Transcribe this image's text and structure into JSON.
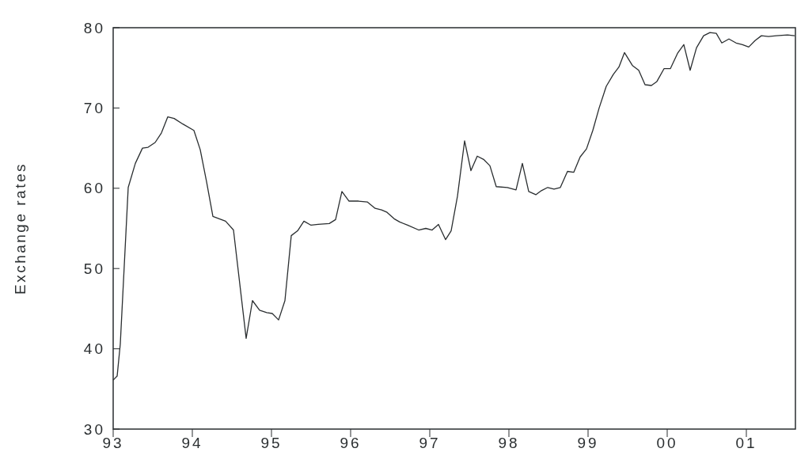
{
  "chart_data": {
    "type": "line",
    "ylabel": "Exchange rates",
    "x": [
      1993.0,
      1993.05,
      1993.09,
      1993.19,
      1993.28,
      1993.37,
      1993.44,
      1993.53,
      1993.61,
      1993.69,
      1993.77,
      1993.88,
      1994.02,
      1994.1,
      1994.18,
      1994.26,
      1994.42,
      1994.52,
      1994.68,
      1994.76,
      1994.85,
      1994.94,
      1995.01,
      1995.09,
      1995.17,
      1995.25,
      1995.33,
      1995.41,
      1995.5,
      1995.59,
      1995.73,
      1995.81,
      1995.89,
      1995.98,
      1996.1,
      1996.21,
      1996.31,
      1996.39,
      1996.46,
      1996.55,
      1996.62,
      1996.72,
      1996.86,
      1996.95,
      1997.03,
      1997.11,
      1997.2,
      1997.27,
      1997.35,
      1997.44,
      1997.52,
      1997.6,
      1997.68,
      1997.76,
      1997.84,
      1997.98,
      1998.09,
      1998.17,
      1998.25,
      1998.34,
      1998.41,
      1998.49,
      1998.57,
      1998.65,
      1998.74,
      1998.82,
      1998.9,
      1998.98,
      1999.06,
      1999.14,
      1999.23,
      1999.32,
      1999.39,
      1999.46,
      1999.56,
      1999.64,
      1999.72,
      1999.8,
      1999.87,
      1999.96,
      2000.04,
      2000.13,
      2000.21,
      2000.29,
      2000.37,
      2000.46,
      2000.54,
      2000.62,
      2000.69,
      2000.78,
      2000.87,
      2000.95,
      2001.03,
      2001.11,
      2001.19,
      2001.28,
      2001.38,
      2001.52,
      2001.61
    ],
    "series": [
      {
        "color": "#2a2e30",
        "values": [
          36.1,
          36.6,
          40.6,
          60.1,
          63.1,
          65.0,
          65.1,
          65.7,
          66.9,
          68.9,
          68.7,
          68.0,
          67.2,
          64.8,
          60.8,
          56.5,
          55.9,
          54.8,
          41.3,
          46.0,
          44.8,
          44.5,
          44.4,
          43.6,
          46.0,
          54.1,
          54.7,
          55.9,
          55.4,
          55.5,
          55.6,
          56.1,
          59.6,
          58.4,
          58.4,
          58.3,
          57.5,
          57.3,
          57.0,
          56.2,
          55.8,
          55.4,
          54.8,
          55.0,
          54.8,
          55.5,
          53.6,
          54.7,
          59.0,
          65.9,
          62.2,
          64.0,
          63.6,
          62.8,
          60.2,
          60.1,
          59.8,
          63.1,
          59.6,
          59.2,
          59.7,
          60.1,
          59.9,
          60.1,
          62.1,
          62.0,
          63.9,
          64.9,
          67.2,
          70.0,
          72.7,
          74.2,
          75.1,
          76.9,
          75.3,
          74.7,
          72.9,
          72.8,
          73.3,
          74.9,
          74.9,
          76.8,
          77.9,
          74.7,
          77.5,
          79.0,
          79.4,
          79.3,
          78.1,
          78.6,
          78.1,
          77.9,
          77.6,
          78.4,
          79.0,
          78.9,
          79.0,
          79.1,
          79.0
        ]
      }
    ],
    "xlim": [
      1993.0,
      2001.62
    ],
    "ylim": [
      30,
      80
    ],
    "xticks": [
      {
        "value": 1993,
        "label": "93"
      },
      {
        "value": 1994,
        "label": "94"
      },
      {
        "value": 1995,
        "label": "95"
      },
      {
        "value": 1996,
        "label": "96"
      },
      {
        "value": 1997,
        "label": "97"
      },
      {
        "value": 1998,
        "label": "98"
      },
      {
        "value": 1999,
        "label": "99"
      },
      {
        "value": 2000,
        "label": "00"
      },
      {
        "value": 2001,
        "label": "01"
      }
    ],
    "yticks": [
      30,
      40,
      50,
      60,
      70,
      80
    ],
    "grid": false,
    "marker": "none",
    "line_style": "solid"
  }
}
